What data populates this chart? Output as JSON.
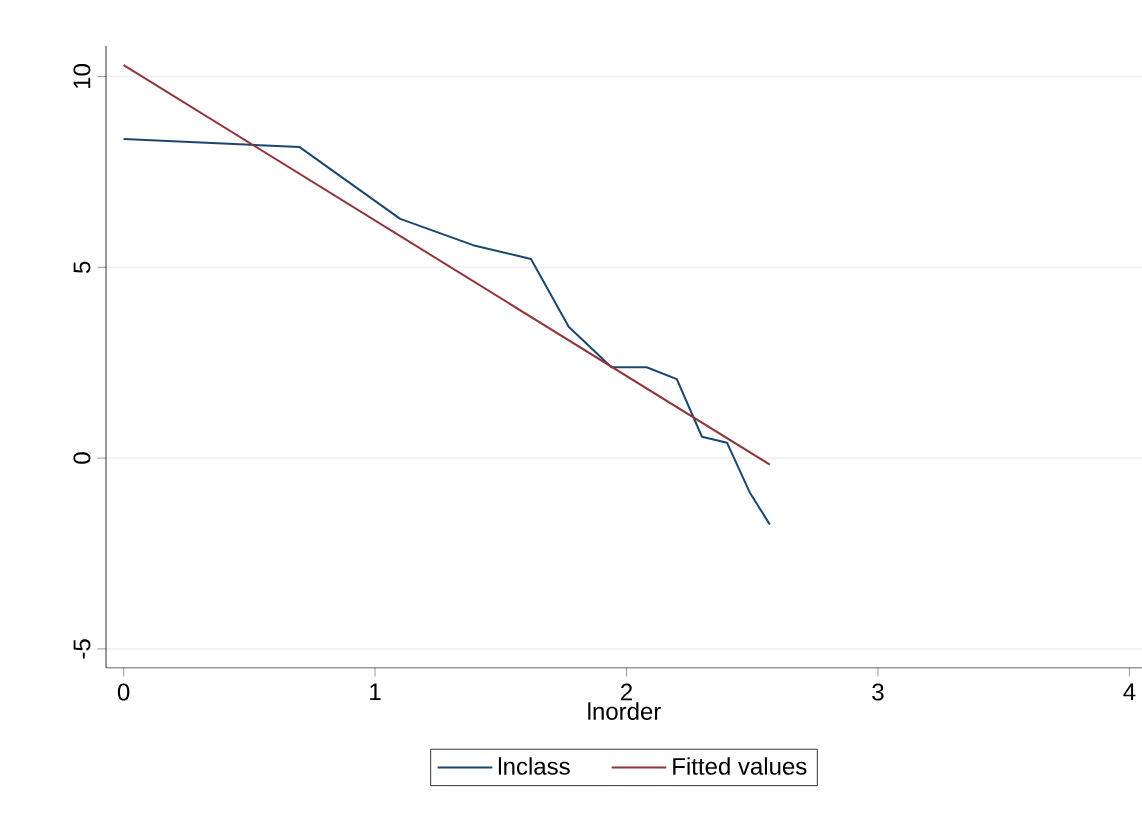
{
  "chart_data": {
    "type": "line",
    "xlabel": "lnorder",
    "xlim": [
      -0.07,
      4.05
    ],
    "ylim": [
      -5.5,
      10.8
    ],
    "xticks": [
      0,
      1,
      2,
      3,
      4
    ],
    "yticks": [
      -5,
      0,
      5,
      10
    ],
    "grid": "y",
    "legend": "bottom",
    "marker": "none",
    "line_style": "solid",
    "series": [
      {
        "name": "lnclass",
        "color": "#1a476f",
        "x": [
          0,
          0.7,
          1.1,
          1.39,
          1.62,
          1.77,
          1.94,
          2.08,
          2.2,
          2.3,
          2.4,
          2.49,
          2.57
        ],
        "values": [
          8.36,
          8.15,
          6.27,
          5.58,
          5.22,
          3.44,
          2.38,
          2.38,
          2.07,
          0.56,
          0.4,
          -0.9,
          -1.74
        ]
      },
      {
        "name": "Fitted values",
        "color": "#90353b",
        "x": [
          0,
          2.57
        ],
        "values": [
          10.3,
          -0.17
        ]
      }
    ]
  }
}
